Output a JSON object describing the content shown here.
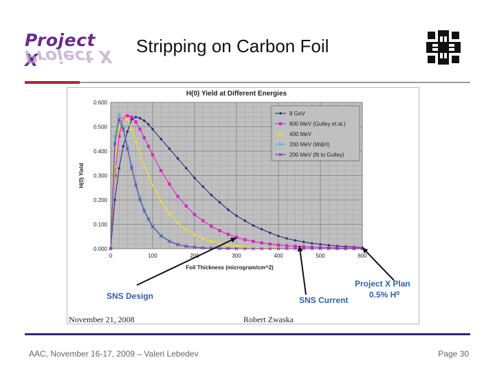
{
  "header": {
    "logo_text": "Project X",
    "title": "Stripping on Carbon Foil"
  },
  "footer": {
    "left": "AAC, November 16-17, 2009 – Valeri Lebedev",
    "right": "Page 30"
  },
  "figure_caption": {
    "date": "November 21, 2008",
    "author": "Robert Zwaska"
  },
  "colors": {
    "accent_red": "#b0262c",
    "logo_purple": "#6b2c8a",
    "annotation_blue": "#2d5fa8",
    "plot_bg": "#c0c0c0"
  },
  "icons": [
    "fermilab-logo-icon"
  ],
  "annotations": [
    {
      "id": "sns-design",
      "text": "SNS Design"
    },
    {
      "id": "sns-current",
      "text": "SNS Current"
    },
    {
      "id": "projectx-plan",
      "text": "Project X Plan"
    },
    {
      "id": "projectx-plan2",
      "text": "0.5% H⁰"
    }
  ],
  "chart_data": {
    "type": "line",
    "title": "H(0) Yield at Different Energies",
    "xlabel": "Foil Thickness (microgram/cm^2)",
    "ylabel": "H(0) Yield",
    "xlim": [
      0,
      600
    ],
    "ylim": [
      0,
      0.6
    ],
    "xticks": [
      "0",
      "100",
      "200",
      "300",
      "400",
      "500",
      "600"
    ],
    "yticks": [
      "0.000",
      "0.100",
      "0.200",
      "0.300",
      "0.400",
      "0.500",
      "0.600"
    ],
    "grid": true,
    "legend_position": "top-right",
    "series": [
      {
        "name": "8 GeV",
        "color": "#1f2d7a",
        "marker": "diamond",
        "x": [
          0,
          10,
          20,
          30,
          40,
          50,
          60,
          70,
          80,
          90,
          100,
          120,
          140,
          160,
          180,
          200,
          220,
          240,
          260,
          280,
          300,
          320,
          340,
          360,
          380,
          400,
          420,
          440,
          460,
          480,
          500,
          520,
          540,
          560,
          580,
          600
        ],
        "y": [
          0,
          0.2,
          0.33,
          0.42,
          0.48,
          0.53,
          0.54,
          0.535,
          0.525,
          0.51,
          0.49,
          0.45,
          0.41,
          0.37,
          0.33,
          0.29,
          0.255,
          0.22,
          0.19,
          0.16,
          0.135,
          0.115,
          0.095,
          0.08,
          0.065,
          0.052,
          0.042,
          0.034,
          0.028,
          0.022,
          0.018,
          0.014,
          0.011,
          0.009,
          0.007,
          0.005
        ]
      },
      {
        "name": "800 MeV (Gulley et al.)",
        "color": "#e020c8",
        "marker": "square",
        "x": [
          0,
          10,
          20,
          30,
          40,
          50,
          60,
          70,
          80,
          90,
          100,
          120,
          140,
          160,
          180,
          200,
          220,
          240,
          260,
          280,
          300,
          320,
          340,
          360,
          380,
          400,
          420,
          440,
          460,
          480,
          500,
          520,
          540,
          560,
          580,
          600
        ],
        "y": [
          0,
          0.3,
          0.46,
          0.54,
          0.545,
          0.54,
          0.52,
          0.49,
          0.455,
          0.42,
          0.385,
          0.32,
          0.265,
          0.215,
          0.175,
          0.14,
          0.115,
          0.092,
          0.074,
          0.059,
          0.047,
          0.037,
          0.03,
          0.024,
          0.019,
          0.015,
          0.012,
          0.01,
          0.008,
          0.006,
          0.005,
          0.004,
          0.003,
          0.002,
          0.002,
          0.001
        ]
      },
      {
        "name": "400 MeV",
        "color": "#f0e020",
        "marker": "triangle",
        "x": [
          0,
          10,
          20,
          30,
          40,
          50,
          60,
          70,
          80,
          90,
          100,
          120,
          140,
          160,
          180,
          200,
          220,
          240,
          260,
          280,
          300,
          320,
          340,
          360,
          380,
          400
        ],
        "y": [
          0,
          0.34,
          0.5,
          0.545,
          0.53,
          0.49,
          0.44,
          0.39,
          0.34,
          0.3,
          0.26,
          0.195,
          0.145,
          0.107,
          0.079,
          0.058,
          0.042,
          0.031,
          0.022,
          0.016,
          0.012,
          0.008,
          0.006,
          0.004,
          0.003,
          0.002
        ]
      },
      {
        "name": "200 MeV (W&H)",
        "color": "#30c0e0",
        "marker": "x",
        "x": [
          0,
          10,
          20,
          30,
          40,
          50,
          60,
          70,
          80,
          90,
          100,
          120,
          140,
          160,
          180,
          200,
          220,
          240,
          260,
          280,
          300
        ],
        "y": [
          0,
          0.46,
          0.55,
          0.5,
          0.42,
          0.34,
          0.27,
          0.21,
          0.16,
          0.125,
          0.095,
          0.055,
          0.032,
          0.018,
          0.01,
          0.006,
          0.003,
          0.002,
          0.001,
          0.001,
          0
        ]
      },
      {
        "name": "200 MeV (fit to Gulley)",
        "color": "#7a3aa0",
        "marker": "x",
        "x": [
          0,
          10,
          20,
          30,
          40,
          50,
          60,
          70,
          80,
          90,
          100,
          120,
          140,
          160,
          180,
          200,
          220,
          240,
          260,
          280,
          300,
          320,
          340,
          360,
          380,
          400,
          420,
          440,
          460,
          480,
          500,
          520,
          540,
          560,
          580,
          600
        ],
        "y": [
          0,
          0.43,
          0.53,
          0.49,
          0.41,
          0.33,
          0.26,
          0.2,
          0.155,
          0.12,
          0.09,
          0.052,
          0.03,
          0.017,
          0.01,
          0.006,
          0.003,
          0.002,
          0.001,
          0.001,
          0,
          0,
          0,
          0,
          0,
          0,
          0,
          0,
          0,
          0,
          0,
          0,
          0,
          0,
          0,
          0
        ]
      }
    ]
  }
}
